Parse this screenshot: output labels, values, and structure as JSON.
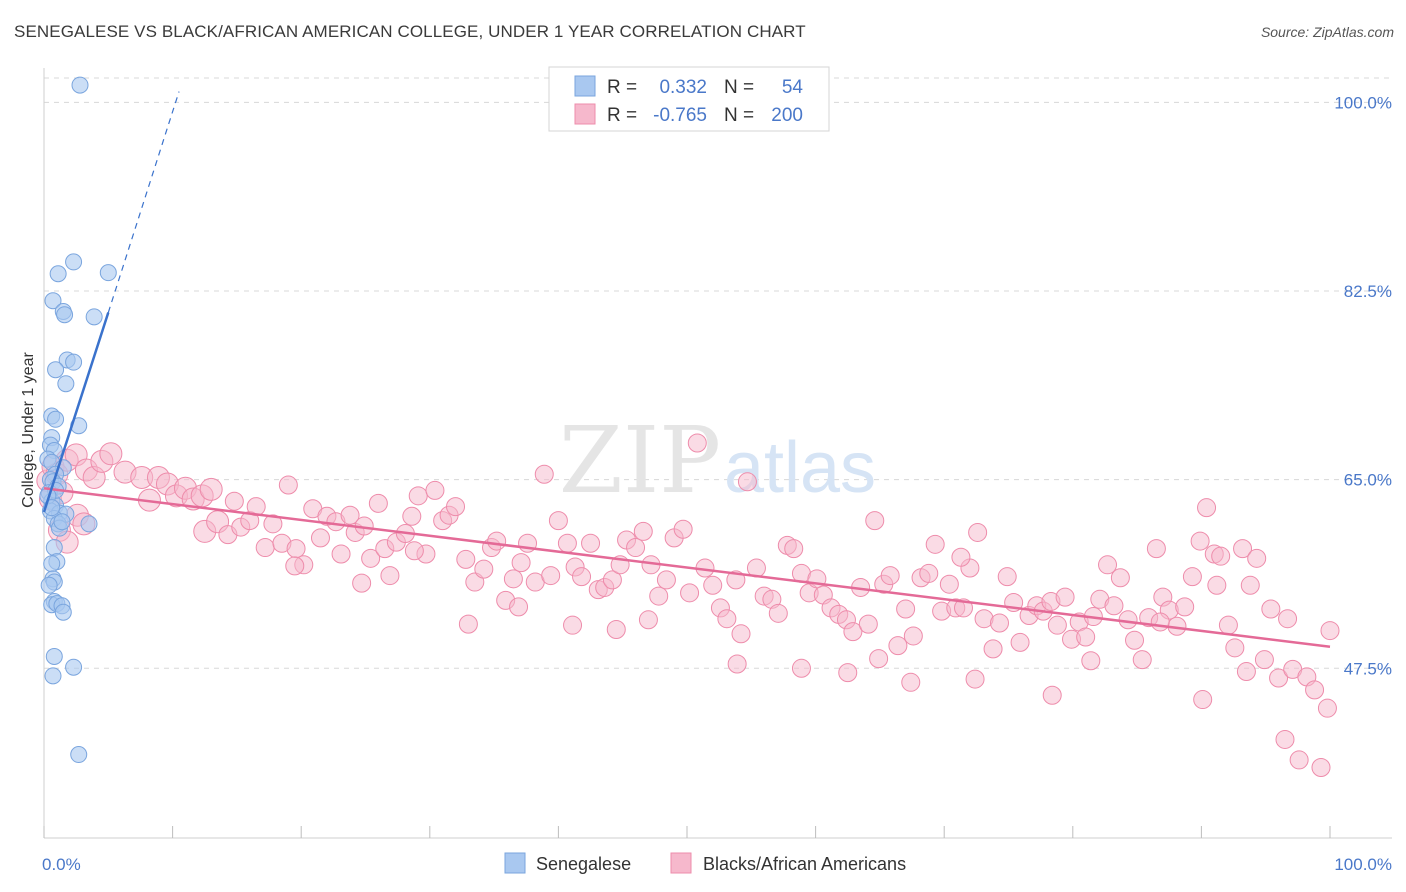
{
  "header": {
    "title": "SENEGALESE VS BLACK/AFRICAN AMERICAN COLLEGE, UNDER 1 YEAR CORRELATION CHART",
    "source": "Source: ZipAtlas.com"
  },
  "watermark": {
    "zip": "ZIP",
    "atlas": "atlas"
  },
  "chart_data": {
    "type": "scatter",
    "ylabel": "College, Under 1 year",
    "xlabel": "",
    "xlim": [
      0,
      100
    ],
    "ylim": [
      32.5,
      103
    ],
    "x_tick_labels": [
      "0.0%",
      "100.0%"
    ],
    "y_ticks": [
      47.5,
      65.0,
      82.5,
      100.0
    ],
    "y_tick_labels": [
      "47.5%",
      "65.0%",
      "82.5%",
      "100.0%"
    ],
    "grid": true,
    "legend_position": "top-center",
    "colors": {
      "senegalese": "#a9c8f0",
      "senegalese_edge": "#7aa5de",
      "senegalese_line": "#3a72cc",
      "black": "#f6b8cc",
      "black_edge": "#ee8cab",
      "black_line": "#e46a97",
      "grid": "#d8d8d8",
      "tick_text": "#4a78c9"
    },
    "legend": {
      "items": [
        {
          "r_label": "R =",
          "r_value": "0.332",
          "n_label": "N =",
          "n_value": "54"
        },
        {
          "r_label": "R =",
          "r_value": "-0.765",
          "n_label": "N =",
          "n_value": "200"
        }
      ]
    },
    "series": [
      {
        "name": "Senegalese",
        "trend": {
          "x": [
            0.0,
            5.0
          ],
          "y": [
            62.0,
            80.5
          ],
          "dashed_to": [
            10.5,
            101.0
          ]
        },
        "points": [
          [
            2.8,
            101.6
          ],
          [
            2.3,
            85.2
          ],
          [
            1.1,
            84.1
          ],
          [
            5.0,
            84.2
          ],
          [
            0.7,
            81.6
          ],
          [
            1.5,
            80.6
          ],
          [
            1.6,
            80.3
          ],
          [
            3.9,
            80.1
          ],
          [
            1.8,
            76.1
          ],
          [
            2.3,
            75.9
          ],
          [
            0.9,
            75.2
          ],
          [
            1.7,
            73.9
          ],
          [
            0.6,
            70.9
          ],
          [
            0.9,
            70.6
          ],
          [
            2.7,
            70.0
          ],
          [
            0.6,
            68.9
          ],
          [
            0.5,
            68.2
          ],
          [
            0.8,
            67.7
          ],
          [
            0.3,
            66.9
          ],
          [
            0.6,
            66.6
          ],
          [
            1.5,
            66.1
          ],
          [
            0.9,
            65.5
          ],
          [
            0.5,
            65.0
          ],
          [
            0.7,
            64.8
          ],
          [
            1.1,
            64.4
          ],
          [
            0.4,
            63.8
          ],
          [
            0.6,
            63.0
          ],
          [
            0.9,
            62.6
          ],
          [
            0.5,
            62.1
          ],
          [
            1.2,
            61.9
          ],
          [
            1.7,
            61.8
          ],
          [
            0.8,
            61.4
          ],
          [
            1.1,
            60.9
          ],
          [
            3.5,
            60.9
          ],
          [
            1.2,
            60.5
          ],
          [
            0.8,
            58.7
          ],
          [
            1.0,
            57.4
          ],
          [
            0.6,
            57.2
          ],
          [
            0.7,
            55.8
          ],
          [
            0.8,
            55.5
          ],
          [
            0.4,
            55.2
          ],
          [
            0.8,
            53.7
          ],
          [
            0.6,
            53.4
          ],
          [
            1.0,
            53.5
          ],
          [
            1.4,
            53.3
          ],
          [
            1.5,
            52.7
          ],
          [
            0.8,
            48.6
          ],
          [
            2.3,
            47.6
          ],
          [
            0.7,
            46.8
          ],
          [
            2.7,
            39.5
          ],
          [
            0.9,
            64.0
          ],
          [
            0.3,
            63.5
          ],
          [
            0.6,
            62.4
          ],
          [
            1.4,
            61.1
          ]
        ]
      },
      {
        "name": "Blacks/African Americans",
        "trend": {
          "x": [
            0.0,
            100.0
          ],
          "y": [
            64.2,
            49.5
          ]
        },
        "points": [
          [
            0.3,
            64.9
          ],
          [
            0.5,
            63.2
          ],
          [
            0.7,
            66.2
          ],
          [
            1.0,
            65.5
          ],
          [
            1.4,
            63.8
          ],
          [
            1.8,
            66.8
          ],
          [
            2.5,
            67.3
          ],
          [
            3.3,
            65.9
          ],
          [
            3.9,
            65.2
          ],
          [
            4.5,
            66.7
          ],
          [
            5.2,
            67.4
          ],
          [
            6.3,
            65.7
          ],
          [
            7.6,
            65.2
          ],
          [
            8.2,
            63.1
          ],
          [
            8.9,
            65.2
          ],
          [
            9.6,
            64.6
          ],
          [
            10.3,
            63.5
          ],
          [
            11.0,
            64.2
          ],
          [
            11.6,
            63.2
          ],
          [
            12.3,
            63.5
          ],
          [
            1.2,
            60.3
          ],
          [
            12.5,
            60.2
          ],
          [
            13.0,
            64.1
          ],
          [
            13.5,
            61.1
          ],
          [
            14.3,
            59.9
          ],
          [
            14.8,
            63.0
          ],
          [
            15.3,
            60.6
          ],
          [
            16.0,
            61.2
          ],
          [
            16.5,
            62.5
          ],
          [
            17.2,
            58.7
          ],
          [
            17.8,
            60.9
          ],
          [
            18.5,
            59.1
          ],
          [
            19.0,
            64.5
          ],
          [
            19.6,
            58.6
          ],
          [
            20.2,
            57.1
          ],
          [
            20.9,
            62.3
          ],
          [
            21.5,
            59.6
          ],
          [
            22.0,
            61.6
          ],
          [
            22.7,
            61.1
          ],
          [
            23.1,
            58.1
          ],
          [
            23.8,
            61.7
          ],
          [
            24.2,
            60.1
          ],
          [
            24.9,
            60.7
          ],
          [
            25.4,
            57.7
          ],
          [
            26.0,
            62.8
          ],
          [
            26.5,
            58.6
          ],
          [
            26.9,
            56.1
          ],
          [
            27.4,
            59.2
          ],
          [
            28.1,
            60.0
          ],
          [
            28.6,
            61.6
          ],
          [
            29.1,
            63.5
          ],
          [
            29.7,
            58.1
          ],
          [
            30.4,
            64.0
          ],
          [
            31.0,
            61.2
          ],
          [
            31.5,
            61.7
          ],
          [
            32.0,
            62.5
          ],
          [
            32.8,
            57.6
          ],
          [
            33.5,
            55.5
          ],
          [
            34.2,
            56.7
          ],
          [
            34.8,
            58.7
          ],
          [
            35.2,
            59.3
          ],
          [
            35.9,
            53.8
          ],
          [
            36.5,
            55.8
          ],
          [
            37.1,
            57.3
          ],
          [
            37.6,
            59.1
          ],
          [
            38.2,
            55.5
          ],
          [
            38.9,
            65.5
          ],
          [
            39.4,
            56.1
          ],
          [
            40.0,
            61.2
          ],
          [
            40.7,
            59.1
          ],
          [
            41.3,
            56.9
          ],
          [
            41.8,
            56.0
          ],
          [
            42.5,
            59.1
          ],
          [
            43.1,
            54.8
          ],
          [
            43.6,
            55.0
          ],
          [
            44.2,
            55.7
          ],
          [
            44.8,
            57.1
          ],
          [
            45.3,
            59.4
          ],
          [
            46.0,
            58.7
          ],
          [
            46.6,
            60.2
          ],
          [
            47.2,
            57.1
          ],
          [
            47.8,
            54.2
          ],
          [
            48.4,
            55.7
          ],
          [
            49.0,
            59.6
          ],
          [
            49.7,
            60.4
          ],
          [
            50.2,
            54.5
          ],
          [
            50.8,
            68.4
          ],
          [
            51.4,
            56.8
          ],
          [
            52.0,
            55.2
          ],
          [
            52.6,
            53.1
          ],
          [
            53.1,
            52.1
          ],
          [
            53.8,
            55.7
          ],
          [
            54.2,
            50.7
          ],
          [
            54.7,
            64.8
          ],
          [
            55.4,
            56.8
          ],
          [
            56.0,
            54.2
          ],
          [
            56.6,
            53.9
          ],
          [
            57.1,
            52.6
          ],
          [
            57.8,
            58.9
          ],
          [
            58.3,
            58.6
          ],
          [
            58.9,
            56.3
          ],
          [
            59.5,
            54.5
          ],
          [
            60.1,
            55.8
          ],
          [
            60.6,
            54.3
          ],
          [
            61.2,
            53.1
          ],
          [
            61.8,
            52.5
          ],
          [
            62.4,
            52.0
          ],
          [
            62.9,
            50.9
          ],
          [
            63.5,
            55.0
          ],
          [
            64.1,
            51.6
          ],
          [
            64.6,
            61.2
          ],
          [
            65.3,
            55.3
          ],
          [
            65.8,
            56.1
          ],
          [
            66.4,
            49.6
          ],
          [
            67.0,
            53.0
          ],
          [
            67.6,
            50.5
          ],
          [
            68.2,
            55.9
          ],
          [
            68.8,
            56.3
          ],
          [
            69.3,
            59.0
          ],
          [
            69.8,
            52.8
          ],
          [
            70.4,
            55.3
          ],
          [
            70.9,
            53.1
          ],
          [
            71.5,
            53.1
          ],
          [
            72.0,
            56.8
          ],
          [
            72.6,
            60.1
          ],
          [
            73.1,
            52.1
          ],
          [
            73.8,
            49.3
          ],
          [
            74.3,
            51.7
          ],
          [
            74.9,
            56.0
          ],
          [
            75.4,
            53.6
          ],
          [
            75.9,
            49.9
          ],
          [
            76.6,
            52.4
          ],
          [
            77.2,
            53.3
          ],
          [
            77.7,
            52.8
          ],
          [
            78.3,
            53.7
          ],
          [
            78.8,
            51.5
          ],
          [
            79.4,
            54.1
          ],
          [
            79.9,
            50.2
          ],
          [
            80.5,
            51.8
          ],
          [
            81.0,
            50.4
          ],
          [
            81.6,
            52.3
          ],
          [
            82.1,
            53.9
          ],
          [
            82.7,
            57.1
          ],
          [
            83.2,
            53.3
          ],
          [
            83.7,
            55.9
          ],
          [
            84.3,
            52.0
          ],
          [
            84.8,
            50.1
          ],
          [
            85.4,
            48.3
          ],
          [
            85.9,
            52.2
          ],
          [
            86.5,
            58.6
          ],
          [
            87.0,
            54.1
          ],
          [
            87.5,
            52.9
          ],
          [
            88.1,
            51.4
          ],
          [
            88.7,
            53.2
          ],
          [
            89.3,
            56.0
          ],
          [
            89.9,
            59.3
          ],
          [
            90.4,
            62.4
          ],
          [
            91.0,
            58.1
          ],
          [
            91.5,
            57.9
          ],
          [
            92.1,
            51.5
          ],
          [
            92.6,
            49.4
          ],
          [
            93.2,
            58.6
          ],
          [
            93.8,
            55.2
          ],
          [
            94.3,
            57.7
          ],
          [
            94.9,
            48.3
          ],
          [
            95.4,
            53.0
          ],
          [
            96.0,
            46.6
          ],
          [
            96.5,
            40.9
          ],
          [
            97.1,
            47.4
          ],
          [
            97.6,
            39.0
          ],
          [
            98.2,
            46.7
          ],
          [
            98.8,
            45.5
          ],
          [
            99.3,
            38.3
          ],
          [
            99.8,
            43.8
          ],
          [
            1.8,
            59.2
          ],
          [
            2.6,
            61.7
          ],
          [
            3.1,
            60.9
          ],
          [
            24.7,
            55.4
          ],
          [
            28.8,
            58.4
          ],
          [
            36.9,
            53.2
          ],
          [
            41.1,
            51.5
          ],
          [
            47.0,
            52.0
          ],
          [
            53.9,
            47.9
          ],
          [
            58.9,
            47.5
          ],
          [
            62.5,
            47.1
          ],
          [
            64.9,
            48.4
          ],
          [
            72.4,
            46.5
          ],
          [
            81.4,
            48.2
          ],
          [
            86.8,
            51.8
          ],
          [
            91.2,
            55.2
          ],
          [
            96.7,
            52.1
          ],
          [
            100.0,
            51.0
          ],
          [
            19.5,
            57.0
          ],
          [
            33.0,
            51.6
          ],
          [
            44.5,
            51.1
          ],
          [
            67.4,
            46.2
          ],
          [
            78.4,
            45.0
          ],
          [
            90.1,
            44.6
          ],
          [
            93.5,
            47.2
          ],
          [
            71.3,
            57.8
          ]
        ]
      }
    ]
  },
  "bottom_legend": [
    "Senegalese",
    "Blacks/African Americans"
  ]
}
